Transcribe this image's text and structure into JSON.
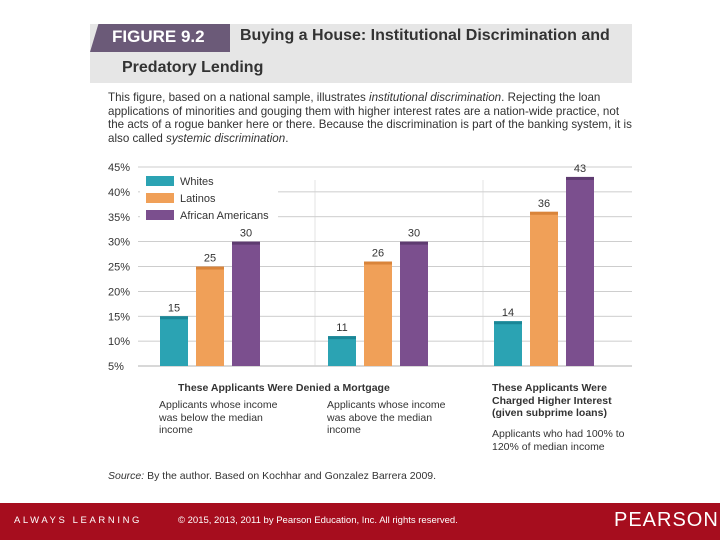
{
  "figure": {
    "label": "FIGURE 9.2",
    "title_line1": "Buying a House: Institutional Discrimination and",
    "title_line2": "Predatory Lending"
  },
  "intro": {
    "part1": "This figure, based on a national sample, illustrates ",
    "em1": "institutional discrimination",
    "part2": ". Rejecting the loan applications of minorities and gouging them with higher interest rates are a nation-wide practice, not the acts of a rogue banker here or there. Because the discrimination is part of the banking system, it is also called ",
    "em2": "systemic discrimination",
    "part3": "."
  },
  "chart_data": {
    "type": "bar",
    "title": "",
    "xlabel": "",
    "ylabel": "",
    "ylim": [
      5,
      45
    ],
    "yticks": [
      "45%",
      "40%",
      "35%",
      "30%",
      "25%",
      "20%",
      "15%",
      "10%",
      "5%"
    ],
    "ytick_values": [
      45,
      40,
      35,
      30,
      25,
      20,
      15,
      10,
      5
    ],
    "grid": true,
    "legend_position": "top-left",
    "categories": [
      "Applicants whose income was below the median income",
      "Applicants whose income was above the median income",
      "Applicants who had 100% to 120% of median income"
    ],
    "series": [
      {
        "name": "Whites",
        "color": "#2ba3b3",
        "values": [
          15,
          11,
          14
        ]
      },
      {
        "name": "Latinos",
        "color": "#f0a058",
        "values": [
          25,
          26,
          36
        ]
      },
      {
        "name": "African Americans",
        "color": "#7b4f8e",
        "values": [
          30,
          30,
          43
        ]
      }
    ]
  },
  "groups": {
    "denied_head": "These Applicants Were Denied a Mortgage",
    "below_median": "Applicants whose income was below the median income",
    "above_median": "Applicants whose income was above the median income",
    "charged_head": "These Applicants Were Charged Higher Interest (given subprime loans)",
    "median_range": "Applicants who had 100% to 120% of median income"
  },
  "source": {
    "label": "Source:",
    "text": " By the author. Based on Kochhar and Gonzalez Barrera 2009."
  },
  "footer": {
    "always_learning": "ALWAYS LEARNING",
    "copyright": "© 2015, 2013, 2011 by Pearson Education, Inc. All rights reserved.",
    "brand": "PEARSON"
  },
  "colors": {
    "footer": "#a60d1e",
    "tab": "#6b5a78",
    "header_band": "#e6e6e6"
  }
}
